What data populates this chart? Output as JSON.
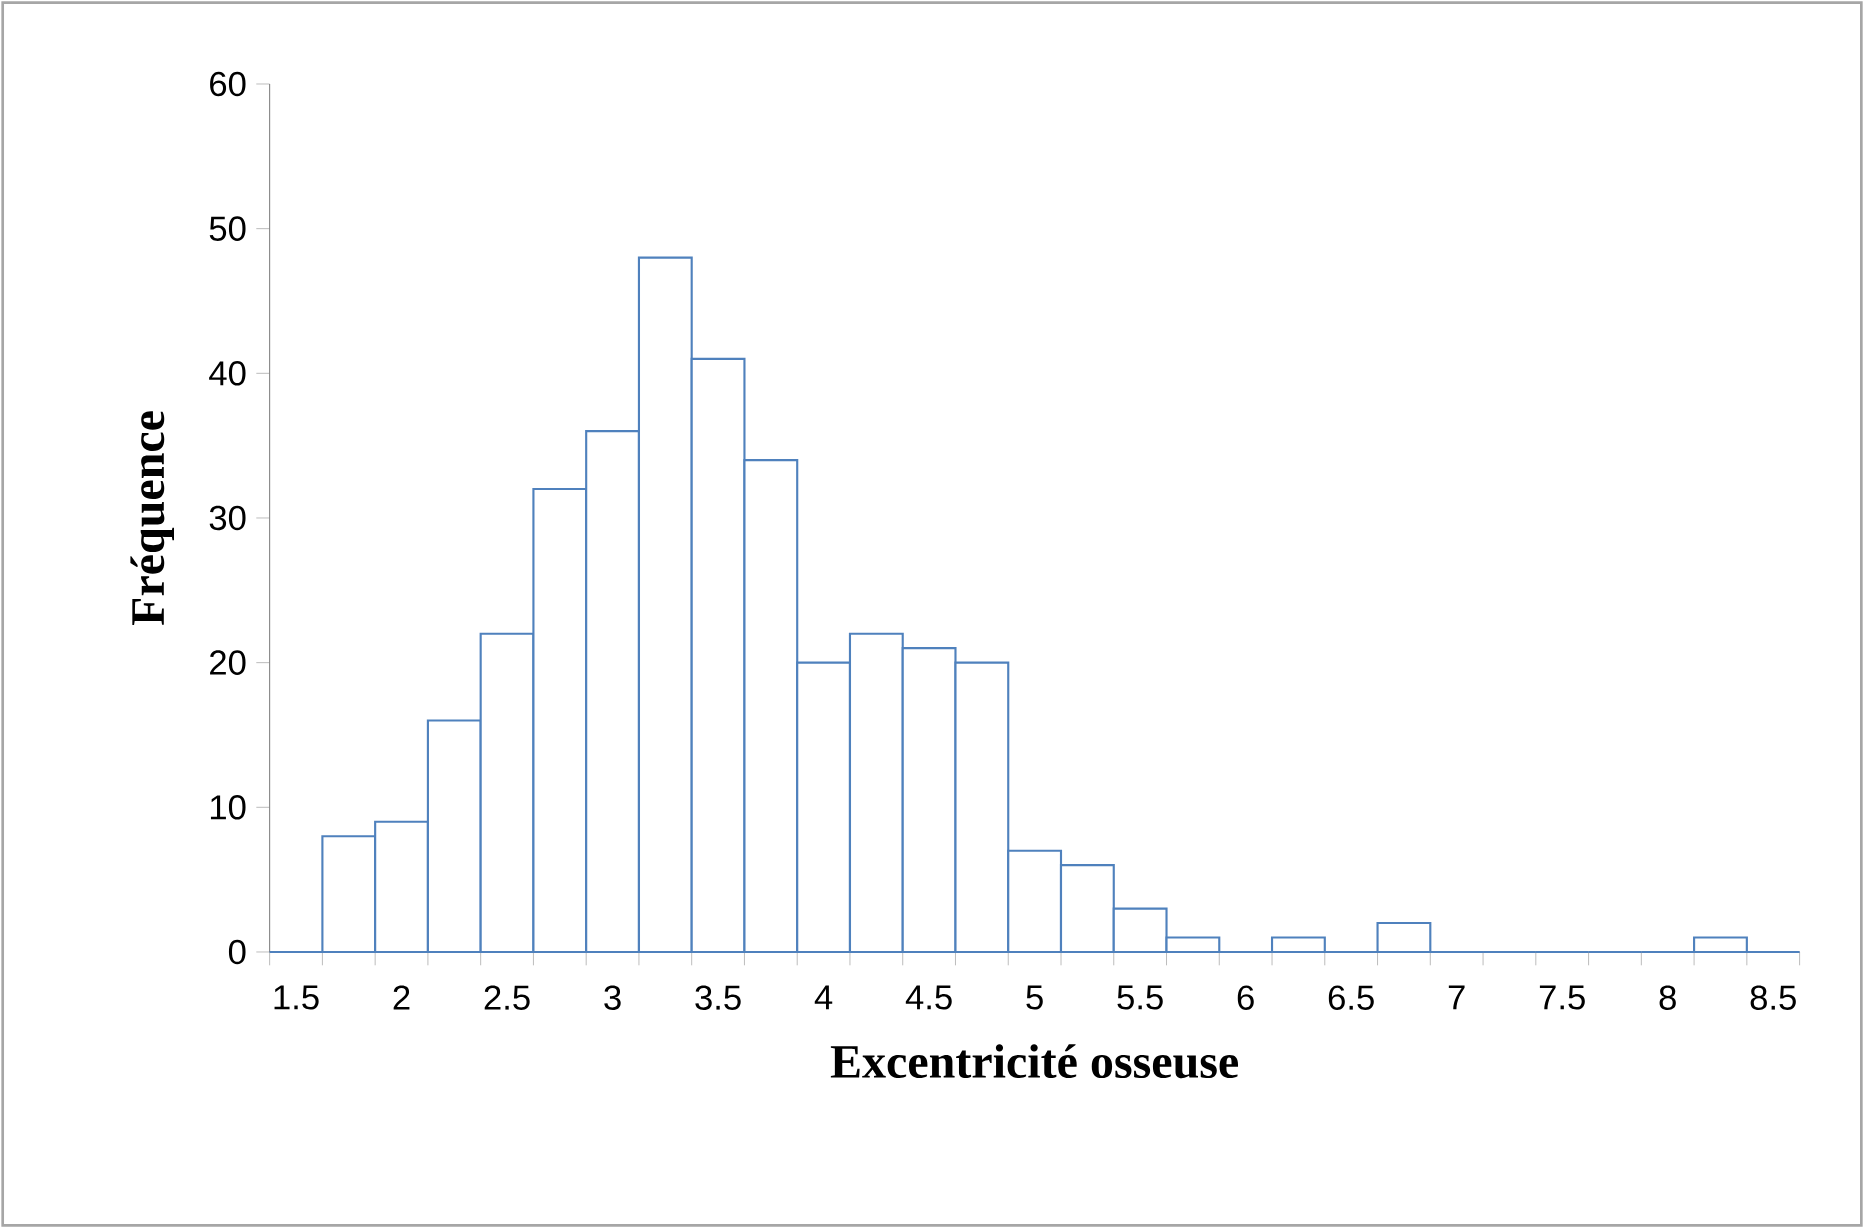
{
  "chart_data": {
    "type": "bar",
    "xlabel": "Excentricité osseuse",
    "ylabel": "Fréquence",
    "categories": [
      "1.5",
      null,
      "2",
      null,
      "2.5",
      null,
      "3",
      null,
      "3.5",
      null,
      "4",
      null,
      "4.5",
      null,
      "5",
      null,
      "5.5",
      null,
      "6",
      null,
      "6.5",
      null,
      "7",
      null,
      "7.5",
      null,
      "8",
      null,
      "8.5"
    ],
    "values": [
      0,
      8,
      9,
      16,
      22,
      32,
      36,
      48,
      41,
      34,
      20,
      22,
      21,
      20,
      7,
      6,
      3,
      1,
      0,
      1,
      0,
      2,
      0,
      0,
      0,
      0,
      0,
      1,
      0
    ],
    "color": "#4f81bd",
    "ylim": [
      0,
      60
    ],
    "yticks": [
      0,
      10,
      20,
      30,
      40,
      50,
      60
    ]
  }
}
